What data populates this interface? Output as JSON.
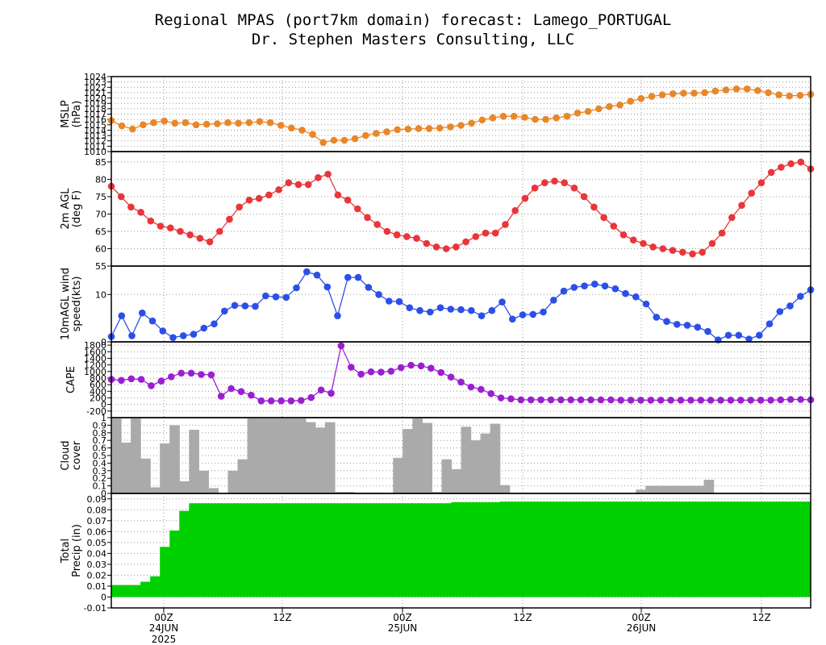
{
  "title_line1": "Regional MPAS (port7km domain) forecast: Lamego_PORTUGAL",
  "title_line2": "Dr. Stephen Masters Consulting, LLC",
  "x_labels": [
    "00Z",
    "12Z",
    "00Z",
    "12Z",
    "00Z",
    "12Z"
  ],
  "x_date_labels": [
    "24JUN",
    "25JUN",
    "26JUN"
  ],
  "x_year_label": "2025",
  "chart_data": [
    {
      "type": "line",
      "ylabel": [
        "MSLP",
        "(hPa)"
      ],
      "color": "#E8872A",
      "ylim": [
        1010,
        1024
      ],
      "yticks": [
        "1010",
        "1011",
        "1012",
        "1013",
        "1014",
        "1015",
        "1016",
        "1017",
        "1018",
        "1019",
        "1020",
        "1021",
        "1022",
        "1023",
        "1024"
      ],
      "values": [
        1015.8,
        1014.8,
        1014.2,
        1015.0,
        1015.4,
        1015.7,
        1015.3,
        1015.4,
        1015.0,
        1015.1,
        1015.2,
        1015.4,
        1015.3,
        1015.4,
        1015.6,
        1015.4,
        1014.9,
        1014.4,
        1014.0,
        1013.2,
        1011.7,
        1012.1,
        1012.1,
        1012.4,
        1013.0,
        1013.4,
        1013.7,
        1014.1,
        1014.2,
        1014.3,
        1014.3,
        1014.4,
        1014.6,
        1014.9,
        1015.3,
        1015.9,
        1016.3,
        1016.6,
        1016.6,
        1016.4,
        1016.0,
        1016.0,
        1016.3,
        1016.6,
        1017.2,
        1017.5,
        1018.0,
        1018.4,
        1018.7,
        1019.4,
        1019.9,
        1020.3,
        1020.6,
        1020.8,
        1020.9,
        1020.9,
        1021.0,
        1021.3,
        1021.5,
        1021.7,
        1021.7,
        1021.4,
        1021.0,
        1020.6,
        1020.4,
        1020.5,
        1020.7
      ]
    },
    {
      "type": "line",
      "ylabel": [
        "2m AGL",
        "(deg F)"
      ],
      "color": "#E8363A",
      "ylim": [
        55,
        88
      ],
      "yticks": [
        "55",
        "60",
        "65",
        "70",
        "75",
        "80",
        "85"
      ],
      "values": [
        78,
        75,
        72,
        70.5,
        68,
        66.5,
        66,
        65,
        64,
        63,
        62,
        65,
        68.5,
        72,
        74,
        74.5,
        75.5,
        77,
        79,
        78.5,
        78.5,
        80.5,
        81.5,
        75.5,
        74,
        71.5,
        69,
        67,
        65,
        64,
        63.5,
        63,
        61.5,
        60.5,
        60,
        60.5,
        62,
        63.5,
        64.5,
        64.5,
        67,
        71,
        74.5,
        77.5,
        79,
        79.5,
        79,
        77.5,
        75,
        72,
        69,
        66.5,
        64,
        62.5,
        61.5,
        60.5,
        60,
        59.5,
        59,
        58.5,
        59,
        61.5,
        64.5,
        69,
        72.5,
        76,
        79,
        82,
        83.5,
        84.5,
        85,
        83
      ]
    },
    {
      "type": "line",
      "ylabel": [
        "10mAGL wind",
        "speed(kts)"
      ],
      "color": "#2B4FE8",
      "ylim": [
        0,
        16
      ],
      "yticks": [
        "0",
        "10"
      ],
      "values": [
        1.1,
        5.5,
        1.3,
        6.1,
        4.4,
        2.3,
        0.9,
        1.3,
        1.6,
        2.9,
        3.8,
        6.5,
        7.7,
        7.6,
        7.5,
        9.7,
        9.5,
        9.4,
        11.4,
        14.8,
        14.1,
        11.6,
        5.5,
        13.6,
        13.6,
        11.5,
        10.0,
        8.6,
        8.5,
        7.2,
        6.6,
        6.3,
        7.2,
        6.9,
        6.8,
        6.6,
        5.5,
        6.6,
        8.4,
        4.8,
        5.7,
        5.8,
        6.3,
        8.8,
        10.7,
        11.5,
        11.8,
        12.2,
        11.8,
        11.2,
        10.2,
        9.5,
        8.0,
        5.2,
        4.3,
        3.7,
        3.5,
        3.1,
        2.2,
        0.4,
        1.4,
        1.4,
        0.6,
        1.4,
        3.8,
        6.4,
        7.6,
        9.6,
        11.0
      ]
    },
    {
      "type": "line",
      "ylabel": [
        "CAPE"
      ],
      "color": "#9B1FD0",
      "ylim": [
        -400,
        1900
      ],
      "yticks": [
        "-200",
        "0",
        "200",
        "400",
        "600",
        "800",
        "1000",
        "1200",
        "1400",
        "1600",
        "1800"
      ],
      "values": [
        760,
        730,
        780,
        760,
        570,
        710,
        840,
        950,
        950,
        910,
        900,
        250,
        480,
        390,
        280,
        110,
        110,
        110,
        110,
        120,
        210,
        440,
        340,
        1780,
        1130,
        920,
        990,
        980,
        1010,
        1120,
        1190,
        1170,
        1100,
        970,
        830,
        680,
        530,
        460,
        330,
        200,
        170,
        140,
        140,
        140,
        140,
        140,
        140,
        140,
        140,
        140,
        140,
        130,
        130,
        130,
        130,
        130,
        130,
        130,
        130,
        130,
        130,
        130,
        130,
        130,
        130,
        130,
        130,
        140,
        150,
        150,
        140
      ]
    },
    {
      "type": "bar",
      "ylabel": [
        "Cloud",
        "cover"
      ],
      "color": "#AAAAAA",
      "ylim": [
        0,
        1.0
      ],
      "yticks": [
        "0",
        "0.1",
        "0.2",
        "0.3",
        "0.4",
        "0.5",
        "0.6",
        "0.7",
        "0.8",
        "0.9",
        "1"
      ],
      "values": [
        1.0,
        0.67,
        1.0,
        0.46,
        0.08,
        0.66,
        0.9,
        0.16,
        0.84,
        0.3,
        0.07,
        0.0,
        0.3,
        0.45,
        1.0,
        1.0,
        1.0,
        1.0,
        1.0,
        1.0,
        0.94,
        0.87,
        0.94,
        0.02,
        0.02,
        0.01,
        0.01,
        0.01,
        0.0,
        0.47,
        0.85,
        1.0,
        0.93,
        0.02,
        0.45,
        0.32,
        0.88,
        0.7,
        0.79,
        0.92,
        0.11,
        0.0,
        0.0,
        0.0,
        0.0,
        0.0,
        0.0,
        0.0,
        0.0,
        0.0,
        0.0,
        0.0,
        0.0,
        0.0,
        0.05,
        0.1,
        0.1,
        0.1,
        0.1,
        0.1,
        0.1,
        0.18,
        0.0,
        0.0,
        0.0,
        0.0,
        0.0,
        0.0,
        0.0,
        0.0,
        0.0,
        0.0
      ]
    },
    {
      "type": "area",
      "ylabel": [
        "Total",
        "Precip (in)"
      ],
      "color": "#00D000",
      "ylim": [
        -0.01,
        0.095
      ],
      "yticks": [
        "-0.01",
        "0",
        "0.01",
        "0.02",
        "0.03",
        "0.04",
        "0.05",
        "0.06",
        "0.07",
        "0.08",
        "0.09"
      ],
      "values": [
        0.011,
        0.011,
        0.011,
        0.014,
        0.019,
        0.046,
        0.061,
        0.079,
        0.086,
        0.086,
        0.086,
        0.086,
        0.086,
        0.086,
        0.086,
        0.086,
        0.086,
        0.086,
        0.086,
        0.086,
        0.086,
        0.086,
        0.086,
        0.086,
        0.086,
        0.086,
        0.086,
        0.086,
        0.086,
        0.086,
        0.086,
        0.086,
        0.086,
        0.086,
        0.086,
        0.087,
        0.087,
        0.087,
        0.087,
        0.087,
        0.0875,
        0.0875,
        0.0875,
        0.0875,
        0.0875,
        0.0875,
        0.0875,
        0.0875,
        0.0875,
        0.0875,
        0.0875,
        0.0875,
        0.0875,
        0.0875,
        0.0875,
        0.0875,
        0.0875,
        0.0875,
        0.0875,
        0.0875,
        0.0875,
        0.0875,
        0.0875,
        0.0875,
        0.0875,
        0.0875,
        0.0875,
        0.0875,
        0.0875,
        0.0875,
        0.0875,
        0.0875
      ]
    }
  ]
}
